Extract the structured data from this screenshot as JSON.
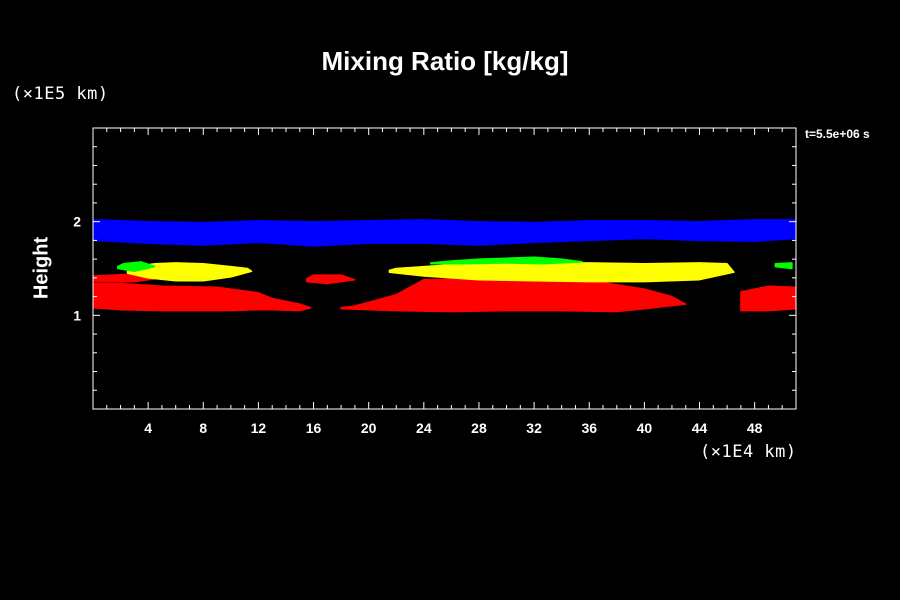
{
  "chart_data": {
    "type": "heatmap",
    "title": "Mixing Ratio [kg/kg]",
    "ylabel": "Height",
    "xlabel": "",
    "x_scale_note": "(×1E4 km)",
    "y_scale_note": "(×1E5 km)",
    "annotation": "t=5.5e+06 s",
    "xlim": [
      0,
      51
    ],
    "ylim": [
      0,
      3
    ],
    "x_ticks": [
      4,
      8,
      12,
      16,
      20,
      24,
      28,
      32,
      36,
      40,
      44,
      48
    ],
    "y_ticks": [
      1,
      2
    ],
    "grid": false,
    "background_color": "#000000",
    "layers": [
      {
        "color": "#ff0000",
        "regions": [
          {
            "x": [
              0,
              2,
              5,
              10,
              12,
              13,
              15,
              15.8,
              15,
              13,
              12,
              9,
              5,
              2,
              0
            ],
            "y": [
              1.08,
              1.06,
              1.05,
              1.05,
              1.06,
              1.06,
              1.05,
              1.08,
              1.12,
              1.18,
              1.24,
              1.3,
              1.31,
              1.34,
              1.34
            ]
          },
          {
            "x": [
              0,
              3,
              5,
              3,
              0
            ],
            "y": [
              1.36,
              1.36,
              1.4,
              1.44,
              1.42
            ]
          },
          {
            "x": [
              15.5,
              17,
              19,
              18,
              16,
              15.5
            ],
            "y": [
              1.36,
              1.34,
              1.38,
              1.43,
              1.43,
              1.39
            ]
          },
          {
            "x": [
              18,
              22,
              26,
              30,
              34,
              38,
              40,
              43,
              42,
              40,
              37,
              35,
              32,
              30,
              27,
              24,
              22,
              19,
              18
            ],
            "y": [
              1.07,
              1.05,
              1.04,
              1.05,
              1.05,
              1.04,
              1.07,
              1.12,
              1.2,
              1.28,
              1.35,
              1.4,
              1.42,
              1.41,
              1.39,
              1.38,
              1.22,
              1.1,
              1.08
            ]
          },
          {
            "x": [
              47,
              49,
              51,
              51,
              49,
              47
            ],
            "y": [
              1.05,
              1.05,
              1.07,
              1.3,
              1.31,
              1.25
            ]
          }
        ]
      },
      {
        "color": "#ffff00",
        "regions": [
          {
            "x": [
              2.5,
              4,
              6,
              8,
              10,
              11.5,
              11.2,
              10,
              8,
              6,
              4.5,
              3,
              2.5
            ],
            "y": [
              1.45,
              1.4,
              1.37,
              1.37,
              1.41,
              1.47,
              1.5,
              1.52,
              1.55,
              1.56,
              1.55,
              1.52,
              1.49
            ]
          },
          {
            "x": [
              21.5,
              24,
              28,
              32,
              36,
              40,
              44,
              46.5,
              46,
              44,
              40,
              36,
              32,
              28,
              24,
              22,
              21.5
            ],
            "y": [
              1.46,
              1.42,
              1.38,
              1.37,
              1.36,
              1.36,
              1.38,
              1.46,
              1.55,
              1.56,
              1.55,
              1.56,
              1.55,
              1.56,
              1.52,
              1.5,
              1.48
            ]
          }
        ]
      },
      {
        "color": "#00ff00",
        "regions": [
          {
            "x": [
              1.8,
              3,
              4.5,
              3.5,
              2.2,
              1.8
            ],
            "y": [
              1.5,
              1.47,
              1.52,
              1.57,
              1.55,
              1.52
            ]
          },
          {
            "x": [
              24.5,
              27,
              30,
              32.5,
              34,
              35.5,
              34,
              32,
              30,
              28,
              26,
              24.5
            ],
            "y": [
              1.55,
              1.55,
              1.56,
              1.55,
              1.56,
              1.57,
              1.6,
              1.62,
              1.61,
              1.6,
              1.58,
              1.56
            ]
          },
          {
            "x": [
              49.5,
              50.7,
              50.7,
              49.5
            ],
            "y": [
              1.52,
              1.5,
              1.56,
              1.55
            ]
          }
        ]
      },
      {
        "color": "#0000ff",
        "regions": [
          {
            "x": [
              0,
              4,
              8,
              12,
              16,
              20,
              24,
              28,
              32,
              36,
              40,
              44,
              48,
              51,
              51,
              48,
              44,
              40,
              36,
              32,
              28,
              24,
              20,
              16,
              12,
              8,
              4,
              0
            ],
            "y": [
              1.8,
              1.77,
              1.75,
              1.78,
              1.74,
              1.77,
              1.77,
              1.75,
              1.78,
              1.8,
              1.82,
              1.8,
              1.79,
              1.82,
              2.02,
              2.02,
              2.0,
              2.01,
              2.01,
              1.99,
              2.0,
              2.02,
              2.01,
              2.0,
              2.01,
              1.99,
              2.0,
              2.02
            ]
          }
        ]
      }
    ]
  }
}
